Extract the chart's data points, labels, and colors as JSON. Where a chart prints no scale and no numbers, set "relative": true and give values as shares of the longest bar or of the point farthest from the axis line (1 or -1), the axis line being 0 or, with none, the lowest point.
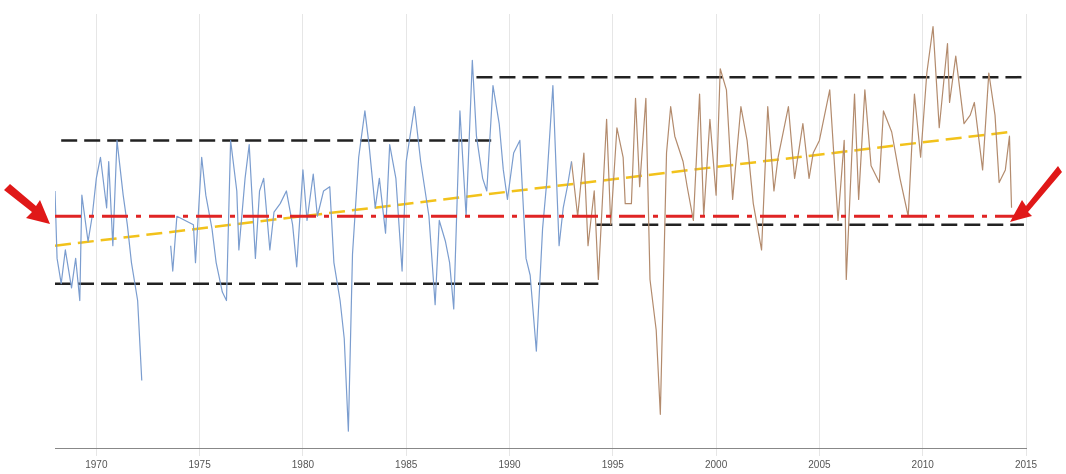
{
  "chart_data": {
    "type": "line",
    "relative": true,
    "xlim": [
      1968,
      2015
    ],
    "xticks": [
      1970,
      1975,
      1980,
      1985,
      1990,
      1995,
      2000,
      2005,
      2010,
      2015
    ],
    "grid": "x",
    "legend": false,
    "series": [
      {
        "color": "#7b9dcf",
        "x": [
          1968.0,
          1968.1,
          1968.3,
          1968.5,
          1968.8,
          1969.0,
          1969.2,
          1969.3,
          1969.6,
          1969.8,
          1970.0,
          1970.2,
          1970.5,
          1970.6,
          1970.8,
          1971.0,
          1971.3,
          1971.5,
          1971.7,
          1972.0,
          1972.2,
          1973.0,
          1973.6,
          1973.7,
          1973.9,
          1974.7,
          1974.8,
          1975.1,
          1975.3,
          1975.6,
          1975.8,
          1976.1,
          1976.3,
          1976.5,
          1976.8,
          1976.9,
          1977.2,
          1977.4,
          1977.7,
          1977.9,
          1978.1,
          1978.4,
          1978.6,
          1978.9,
          1979.2,
          1979.5,
          1979.7,
          1980.0,
          1980.2,
          1980.5,
          1980.7,
          1981.0,
          1981.3,
          1981.5,
          1981.8,
          1982.0,
          1982.2,
          1982.4,
          1982.7,
          1983.0,
          1983.2,
          1983.5,
          1983.7,
          1984.0,
          1984.2,
          1984.5,
          1984.8,
          1985.0,
          1985.4,
          1985.7,
          1986.1,
          1986.4,
          1986.6,
          1986.9,
          1987.1,
          1987.3,
          1987.6,
          1987.9,
          1988.2,
          1988.4,
          1988.7,
          1988.9,
          1989.2,
          1989.5,
          1989.7,
          1989.9,
          1990.2,
          1990.5,
          1990.8,
          1991.0,
          1991.3,
          1991.6,
          1991.8,
          1992.1,
          1992.4,
          1992.6,
          1992.8,
          1993.0
        ],
        "values": [
          0.61,
          0.45,
          0.39,
          0.47,
          0.38,
          0.45,
          0.35,
          0.6,
          0.49,
          0.55,
          0.64,
          0.69,
          0.57,
          0.68,
          0.48,
          0.73,
          0.6,
          0.53,
          0.44,
          0.35,
          0.16,
          null,
          0.48,
          0.42,
          0.55,
          0.53,
          0.44,
          0.69,
          0.6,
          0.52,
          0.44,
          0.37,
          0.35,
          0.73,
          0.61,
          0.47,
          0.64,
          0.72,
          0.45,
          0.61,
          0.64,
          0.47,
          0.56,
          0.58,
          0.61,
          0.53,
          0.43,
          0.66,
          0.54,
          0.65,
          0.55,
          0.61,
          0.62,
          0.44,
          0.35,
          0.26,
          0.04,
          0.46,
          0.69,
          0.8,
          0.72,
          0.57,
          0.64,
          0.51,
          0.72,
          0.64,
          0.42,
          0.68,
          0.81,
          0.68,
          0.55,
          0.34,
          0.54,
          0.49,
          0.44,
          0.33,
          0.8,
          0.55,
          0.92,
          0.74,
          0.64,
          0.61,
          0.86,
          0.77,
          0.66,
          0.59,
          0.7,
          0.73,
          0.45,
          0.41,
          0.23,
          0.52,
          0.63,
          0.86,
          0.48,
          0.57,
          0.62,
          0.68
        ]
      },
      {
        "color": "#b38b6d",
        "x": [
          1993.0,
          1993.3,
          1993.6,
          1993.8,
          1994.1,
          1994.3,
          1994.7,
          1994.9,
          1995.2,
          1995.5,
          1995.6,
          1995.9,
          1996.1,
          1996.3,
          1996.6,
          1996.8,
          1997.1,
          1997.3,
          1997.6,
          1997.8,
          1998.0,
          1998.4,
          1998.6,
          1998.9,
          1999.2,
          1999.4,
          1999.7,
          2000.0,
          2000.2,
          2000.5,
          2000.8,
          2001.2,
          2001.5,
          2001.8,
          2002.2,
          2002.5,
          2002.8,
          2003.0,
          2003.5,
          2003.8,
          2004.2,
          2004.5,
          2004.7,
          2005.0,
          2005.5,
          2005.9,
          2006.2,
          2006.3,
          2006.7,
          2006.9,
          2007.2,
          2007.5,
          2007.9,
          2008.1,
          2008.5,
          2008.9,
          2009.3,
          2009.6,
          2009.9,
          2010.2,
          2010.5,
          2010.8,
          2011.2,
          2011.3,
          2011.6,
          2012.0,
          2012.3,
          2012.5,
          2012.9,
          2013.2,
          2013.5,
          2013.7,
          2014.0,
          2014.2,
          2014.3
        ],
        "values": [
          0.68,
          0.55,
          0.7,
          0.48,
          0.61,
          0.4,
          0.78,
          0.53,
          0.76,
          0.69,
          0.58,
          0.58,
          0.83,
          0.62,
          0.83,
          0.4,
          0.28,
          0.08,
          0.7,
          0.81,
          0.74,
          0.68,
          0.62,
          0.54,
          0.84,
          0.55,
          0.78,
          0.6,
          0.9,
          0.85,
          0.59,
          0.81,
          0.73,
          0.58,
          0.47,
          0.81,
          0.61,
          0.69,
          0.81,
          0.64,
          0.77,
          0.64,
          0.7,
          0.73,
          0.85,
          0.54,
          0.73,
          0.4,
          0.84,
          0.59,
          0.85,
          0.67,
          0.63,
          0.8,
          0.75,
          0.64,
          0.55,
          0.84,
          0.69,
          0.89,
          1.0,
          0.76,
          0.96,
          0.82,
          0.93,
          0.77,
          0.79,
          0.82,
          0.66,
          0.89,
          0.79,
          0.63,
          0.66,
          0.74,
          0.57
        ]
      },
      {
        "type": "line",
        "color": "#f2c21b",
        "line_style": "dashed",
        "x": [
          1968.0,
          2014.2
        ],
        "values": [
          0.48,
          0.75
        ]
      },
      {
        "type": "line",
        "color": "#222222",
        "line_style": "dashed",
        "x": [
          1968.3,
          1989.2
        ],
        "values": [
          0.73,
          0.73
        ]
      },
      {
        "type": "line",
        "color": "#222222",
        "line_style": "dashed",
        "x": [
          1988.4,
          2015.0
        ],
        "values": [
          0.88,
          0.88
        ]
      },
      {
        "type": "line",
        "color": "#222222",
        "line_style": "dashed",
        "x": [
          1968.0,
          1994.3
        ],
        "values": [
          0.39,
          0.39
        ]
      },
      {
        "type": "line",
        "color": "#222222",
        "line_style": "dashed",
        "x": [
          1994.2,
          2014.9
        ],
        "values": [
          0.53,
          0.53
        ]
      }
    ],
    "ref_lines": [
      {
        "axis": "y",
        "value": 0.55,
        "color": "#e02424",
        "line_style": "dashed"
      }
    ]
  }
}
